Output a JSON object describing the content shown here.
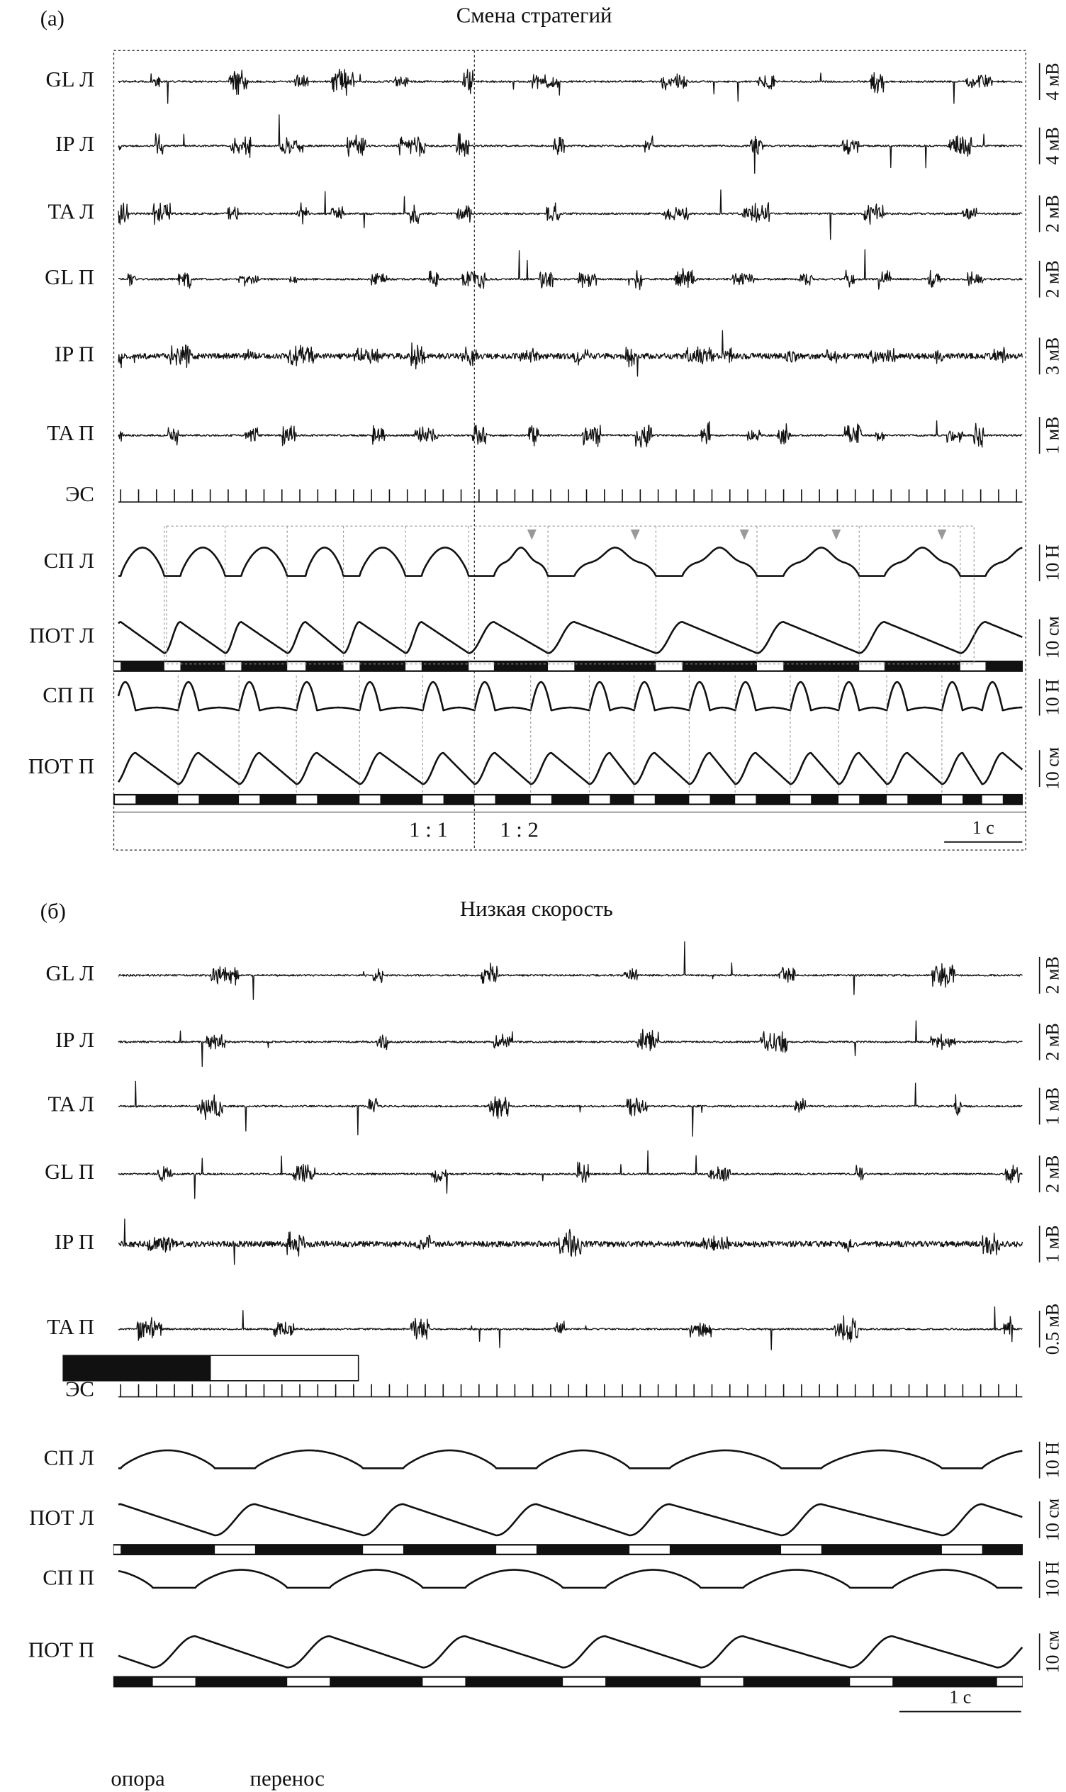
{
  "panels": [
    {
      "label": "(а)",
      "title": "Смена стратегий",
      "traces": [
        {
          "label": "GL Л",
          "scale": "4 мВ"
        },
        {
          "label": "IP Л",
          "scale": "4 мВ"
        },
        {
          "label": "TA Л",
          "scale": "2 мВ"
        },
        {
          "label": "GL П",
          "scale": "2 мВ"
        },
        {
          "label": "IP П",
          "scale": "3 мВ"
        },
        {
          "label": "TA П",
          "scale": "1 мВ"
        },
        {
          "label": "СП Л",
          "scale": "10 Н"
        },
        {
          "label": "ПОТ Л",
          "scale": "10 см"
        },
        {
          "label": "СП П",
          "scale": "10 Н"
        },
        {
          "label": "ПОТ П",
          "scale": "10 см"
        }
      ],
      "sync_label": "ЭС",
      "ratios": [
        "1 : 1",
        "1 : 2"
      ],
      "time_scale": "1 с"
    },
    {
      "label": "(б)",
      "title": "Низкая скорость",
      "traces": [
        {
          "label": "GL Л",
          "scale": "2 мВ"
        },
        {
          "label": "IP Л",
          "scale": "2 мВ"
        },
        {
          "label": "TA Л",
          "scale": "1 мВ"
        },
        {
          "label": "GL П",
          "scale": "2 мВ"
        },
        {
          "label": "IP П",
          "scale": "1 мВ"
        },
        {
          "label": "TA П",
          "scale": "0.5 мВ"
        },
        {
          "label": "СП Л",
          "scale": "10 Н"
        },
        {
          "label": "ПОТ Л",
          "scale": "10 см"
        },
        {
          "label": "СП П",
          "scale": "10 Н"
        },
        {
          "label": "ПОТ П",
          "scale": "10 см"
        }
      ],
      "sync_label": "ЭС",
      "time_scale": "1 с"
    }
  ],
  "legend": {
    "stance": "опора",
    "swing": "перенос"
  }
}
